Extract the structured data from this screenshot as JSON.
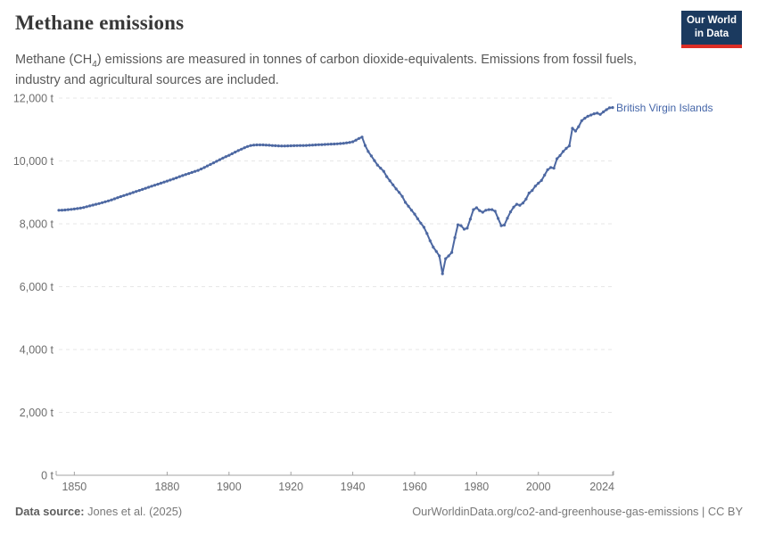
{
  "header": {
    "title": "Methane emissions",
    "subtitle_prefix": "Methane (CH",
    "subtitle_sub": "4",
    "subtitle_suffix": ") emissions are measured in tonnes of carbon dioxide-equivalents. Emissions from fossil fuels, industry and agricultural sources are included.",
    "logo_line1": "Our World",
    "logo_line2": "in Data"
  },
  "chart_data": {
    "type": "line",
    "title": "Methane emissions",
    "unit": "t",
    "grid": "horizontal-dashed",
    "legend_position": "end-of-line-label",
    "xlim": [
      1845,
      2024
    ],
    "ylim": [
      0,
      12000
    ],
    "x_ticks": [
      {
        "year": 1850,
        "label": "1850"
      },
      {
        "year": 1880,
        "label": "1880"
      },
      {
        "year": 1900,
        "label": "1900"
      },
      {
        "year": 1920,
        "label": "1920"
      },
      {
        "year": 1940,
        "label": "1940"
      },
      {
        "year": 1960,
        "label": "1960"
      },
      {
        "year": 1980,
        "label": "1980"
      },
      {
        "year": 2000,
        "label": "2000"
      },
      {
        "year": 2024,
        "label": "2024"
      }
    ],
    "y_ticks": [
      {
        "value": 0,
        "label": "0 t"
      },
      {
        "value": 2000,
        "label": "2,000 t"
      },
      {
        "value": 4000,
        "label": "4,000 t"
      },
      {
        "value": 6000,
        "label": "6,000 t"
      },
      {
        "value": 8000,
        "label": "8,000 t"
      },
      {
        "value": 10000,
        "label": "10,000 t"
      },
      {
        "value": 12000,
        "label": "12,000 t"
      }
    ],
    "series": [
      {
        "name": "British Virgin Islands",
        "color": "#4d68a2",
        "start_year": 1845,
        "end_year": 2024,
        "values": [
          8430,
          8435,
          8440,
          8450,
          8460,
          8470,
          8485,
          8500,
          8520,
          8545,
          8570,
          8595,
          8620,
          8645,
          8672,
          8700,
          8730,
          8760,
          8795,
          8830,
          8865,
          8900,
          8930,
          8962,
          8995,
          9030,
          9062,
          9095,
          9128,
          9162,
          9196,
          9228,
          9260,
          9294,
          9327,
          9360,
          9394,
          9428,
          9462,
          9500,
          9535,
          9568,
          9600,
          9635,
          9668,
          9700,
          9745,
          9790,
          9840,
          9890,
          9940,
          9990,
          10040,
          10090,
          10135,
          10180,
          10230,
          10280,
          10330,
          10375,
          10420,
          10460,
          10490,
          10505,
          10510,
          10512,
          10510,
          10505,
          10498,
          10490,
          10485,
          10480,
          10478,
          10478,
          10480,
          10482,
          10485,
          10488,
          10490,
          10492,
          10495,
          10500,
          10505,
          10510,
          10515,
          10520,
          10525,
          10530,
          10535,
          10540,
          10545,
          10552,
          10562,
          10575,
          10590,
          10610,
          10660,
          10715,
          10760,
          10490,
          10300,
          10160,
          10010,
          9870,
          9770,
          9670,
          9500,
          9370,
          9240,
          9110,
          9000,
          8870,
          8680,
          8560,
          8430,
          8310,
          8160,
          8020,
          7890,
          7690,
          7460,
          7260,
          7120,
          6980,
          6410,
          6890,
          6980,
          7090,
          7560,
          7970,
          7940,
          7830,
          7860,
          8150,
          8450,
          8510,
          8420,
          8370,
          8430,
          8450,
          8450,
          8400,
          8170,
          7940,
          7960,
          8180,
          8380,
          8530,
          8620,
          8590,
          8660,
          8790,
          8980,
          9060,
          9200,
          9290,
          9380,
          9550,
          9720,
          9790,
          9770,
          10070,
          10170,
          10300,
          10400,
          10480,
          11040,
          10950,
          11090,
          11280,
          11360,
          11420,
          11460,
          11500,
          11520,
          11480,
          11560,
          11630,
          11690,
          11700
        ]
      }
    ]
  },
  "colors": {
    "line": "#4d68a2",
    "series_label": "#4465a8",
    "gridline": "#e7e7e7",
    "axis": "#a3a3a3",
    "tick_label": "#6e6e6e",
    "logo_bg": "#1b3a5f",
    "logo_red": "#dc2d25"
  },
  "footer": {
    "source_label": "Data source:",
    "source_value": " Jones et al. (2025)",
    "credit": "OurWorldinData.org/co2-and-greenhouse-gas-emissions | CC BY"
  }
}
